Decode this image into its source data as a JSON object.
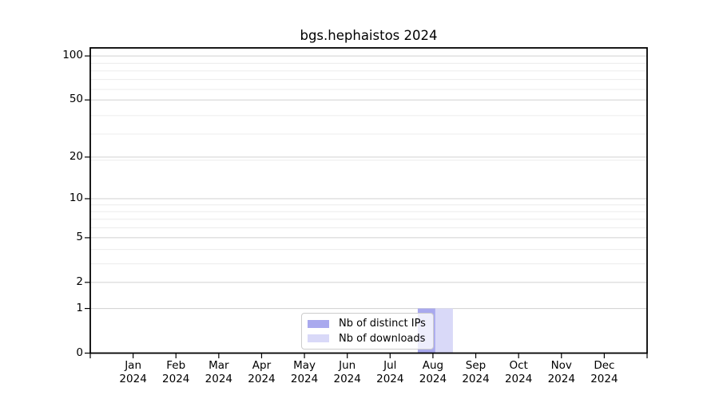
{
  "title": "bgs.hephaistos 2024",
  "chart_data": {
    "type": "bar",
    "title": "bgs.hephaistos 2024",
    "categories": [
      "Jan",
      "Feb",
      "Mar",
      "Apr",
      "May",
      "Jun",
      "Jul",
      "Aug",
      "Sep",
      "Oct",
      "Nov",
      "Dec"
    ],
    "year_label": "2024",
    "series": [
      {
        "name": "Nb of distinct IPs",
        "color": "#a9a9ee",
        "values": [
          0,
          0,
          0,
          0,
          0,
          0,
          0,
          1,
          0,
          0,
          0,
          0
        ]
      },
      {
        "name": "Nb of downloads",
        "color": "#d9d9f8",
        "values": [
          0,
          0,
          0,
          0,
          0,
          0,
          0,
          1,
          0,
          0,
          0,
          0
        ]
      }
    ],
    "xlabel": "",
    "ylabel": "",
    "yscale": "log1p",
    "ylim": [
      0,
      113
    ],
    "yticks": [
      0,
      1,
      2,
      5,
      10,
      20,
      50,
      100
    ],
    "minor_gridlines": [
      3,
      4,
      6,
      7,
      8,
      9,
      19,
      29,
      39,
      59,
      69,
      79,
      89
    ],
    "grid": "horizontal",
    "legend_position": "lower-center",
    "colors": {
      "frame": "#000000",
      "major_grid": "#d0d0d0",
      "minor_grid": "#ececec",
      "text": "#000000",
      "background": "#ffffff"
    }
  }
}
